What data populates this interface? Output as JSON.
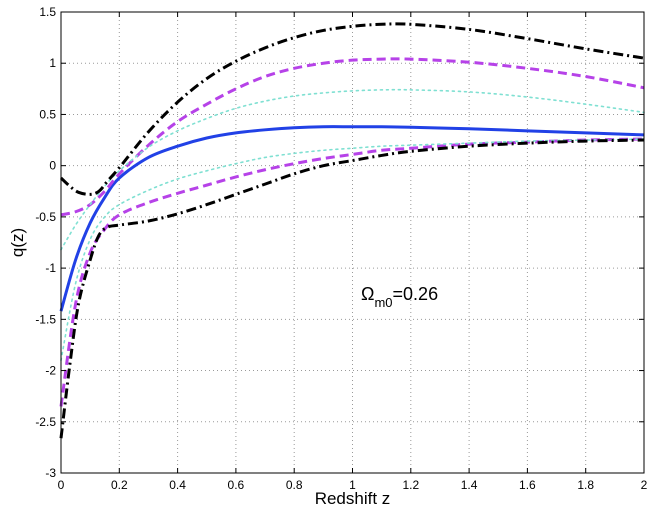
{
  "chart_data": {
    "type": "line",
    "xlabel": "Redshift z",
    "ylabel": "q(z)",
    "xlim": [
      0,
      2
    ],
    "ylim": [
      -3,
      1.5
    ],
    "grid": true,
    "xticks": [
      "0",
      "0.2",
      "0.4",
      "0.6",
      "0.8",
      "1",
      "1.2",
      "1.4",
      "1.6",
      "1.8",
      "2"
    ],
    "yticks": [
      "-3",
      "-2.5",
      "-2",
      "-1.5",
      "-1",
      "-0.5",
      "0",
      "0.5",
      "1",
      "1.5"
    ],
    "annotation": {
      "base": "Ω",
      "sub": "m0",
      "value": "=0.26"
    },
    "series": [
      {
        "style": "solid",
        "color": "#2141e6",
        "x": [
          0,
          0.05,
          0.1,
          0.15,
          0.2,
          0.3,
          0.4,
          0.5,
          0.6,
          0.7,
          0.8,
          0.9,
          1.0,
          1.1,
          1.2,
          1.4,
          1.6,
          1.8,
          2.0
        ],
        "y": [
          -1.42,
          -0.92,
          -0.56,
          -0.31,
          -0.12,
          0.08,
          0.19,
          0.27,
          0.32,
          0.35,
          0.37,
          0.38,
          0.38,
          0.38,
          0.375,
          0.36,
          0.34,
          0.32,
          0.3
        ]
      },
      {
        "style": "dashed",
        "color": "#b642e8",
        "x": [
          0,
          0.05,
          0.1,
          0.15,
          0.2,
          0.3,
          0.4,
          0.5,
          0.6,
          0.7,
          0.8,
          0.9,
          1.0,
          1.1,
          1.2,
          1.4,
          1.6,
          1.8,
          2.0
        ],
        "y": [
          -0.48,
          -0.45,
          -0.38,
          -0.25,
          -0.08,
          0.2,
          0.43,
          0.6,
          0.75,
          0.87,
          0.95,
          1.0,
          1.03,
          1.04,
          1.04,
          1.01,
          0.95,
          0.87,
          0.76
        ]
      },
      {
        "style": "dashed",
        "color": "#b642e8",
        "x": [
          0,
          0.05,
          0.1,
          0.15,
          0.2,
          0.3,
          0.4,
          0.5,
          0.6,
          0.7,
          0.8,
          0.9,
          1.0,
          1.1,
          1.2,
          1.4,
          1.6,
          1.8,
          2.0
        ],
        "y": [
          -2.35,
          -1.35,
          -0.85,
          -0.62,
          -0.48,
          -0.36,
          -0.27,
          -0.19,
          -0.11,
          -0.04,
          0.02,
          0.07,
          0.11,
          0.15,
          0.17,
          0.21,
          0.23,
          0.25,
          0.26
        ]
      },
      {
        "style": "dotted",
        "color": "#7fe0d2",
        "x": [
          0,
          0.05,
          0.1,
          0.15,
          0.2,
          0.3,
          0.4,
          0.5,
          0.6,
          0.7,
          0.8,
          0.9,
          1.0,
          1.1,
          1.2,
          1.4,
          1.6,
          1.8,
          2.0
        ],
        "y": [
          -0.82,
          -0.58,
          -0.38,
          -0.2,
          -0.05,
          0.18,
          0.34,
          0.46,
          0.56,
          0.63,
          0.68,
          0.71,
          0.73,
          0.74,
          0.74,
          0.72,
          0.67,
          0.6,
          0.52
        ]
      },
      {
        "style": "dotted",
        "color": "#7fe0d2",
        "x": [
          0,
          0.05,
          0.1,
          0.15,
          0.2,
          0.3,
          0.4,
          0.5,
          0.6,
          0.7,
          0.8,
          0.9,
          1.0,
          1.1,
          1.2,
          1.4,
          1.6,
          1.8,
          2.0
        ],
        "y": [
          -1.9,
          -1.15,
          -0.72,
          -0.5,
          -0.38,
          -0.24,
          -0.13,
          -0.05,
          0.02,
          0.08,
          0.12,
          0.15,
          0.17,
          0.19,
          0.2,
          0.22,
          0.24,
          0.25,
          0.26
        ]
      },
      {
        "style": "dashdot",
        "color": "#000000",
        "x": [
          0,
          0.03,
          0.06,
          0.1,
          0.13,
          0.16,
          0.2,
          0.3,
          0.4,
          0.5,
          0.6,
          0.7,
          0.8,
          0.9,
          1.0,
          1.1,
          1.2,
          1.4,
          1.6,
          1.8,
          2.0
        ],
        "y": [
          -0.12,
          -0.2,
          -0.26,
          -0.28,
          -0.25,
          -0.15,
          -0.02,
          0.33,
          0.62,
          0.85,
          1.02,
          1.15,
          1.25,
          1.32,
          1.36,
          1.38,
          1.38,
          1.33,
          1.24,
          1.14,
          1.05
        ]
      },
      {
        "style": "dashdot",
        "color": "#000000",
        "x": [
          0,
          0.03,
          0.06,
          0.1,
          0.13,
          0.16,
          0.2,
          0.3,
          0.4,
          0.5,
          0.6,
          0.7,
          0.8,
          0.9,
          1.0,
          1.1,
          1.2,
          1.4,
          1.6,
          1.8,
          2.0
        ],
        "y": [
          -2.66,
          -1.95,
          -1.35,
          -0.92,
          -0.68,
          -0.6,
          -0.58,
          -0.54,
          -0.47,
          -0.38,
          -0.28,
          -0.18,
          -0.08,
          0.0,
          0.05,
          0.1,
          0.14,
          0.19,
          0.22,
          0.24,
          0.25
        ]
      }
    ]
  }
}
